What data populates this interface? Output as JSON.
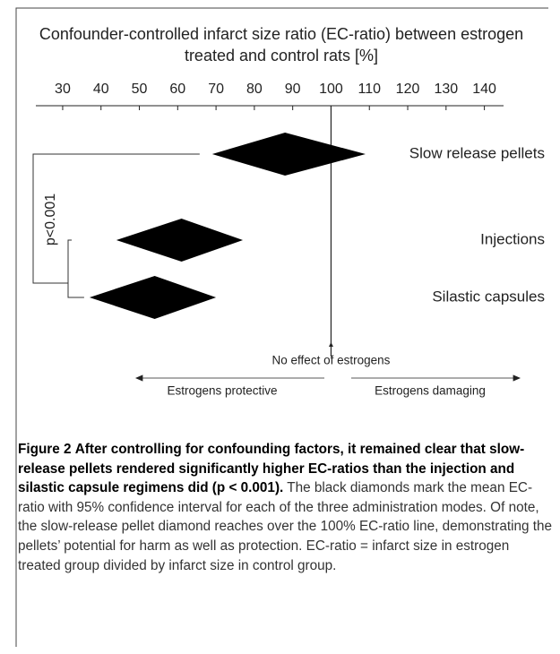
{
  "chart_data": {
    "type": "forest",
    "title": "Confounder-controlled infarct size ratio (EC-ratio) between estrogen treated and control rats [%]",
    "categories": [
      "Slow release pellets",
      "Injections",
      "Silastic capsules"
    ],
    "values": [
      88,
      61,
      54
    ],
    "low": [
      69,
      44,
      37
    ],
    "high": [
      109,
      77,
      70
    ],
    "color": "#000000",
    "xlim": [
      23,
      145
    ],
    "xticks": [
      30,
      40,
      50,
      60,
      70,
      80,
      90,
      100,
      110,
      120,
      130,
      140
    ],
    "reference_line": {
      "value": 100,
      "label": "No effect of estrogens"
    },
    "significance": "p<0.001",
    "direction_labels": [
      "Estrogens protective",
      "Estrogens damaging"
    ]
  },
  "caption": {
    "label": "Figure 2",
    "title": "After controlling for confounding factors, it remained clear that slow-release pellets rendered significantly higher EC-ratios than the injection and silastic capsule regimens did (p < 0.001).",
    "text": "The black diamonds mark the mean EC-ratio with 95% confidence interval for each of the three administration modes. Of note, the slow-release pellet diamond reaches over the 100% EC-ratio line, demonstrating the pellets’ potential for harm as well as protection. EC-ratio = infarct size in estrogen treated group divided by infarct size in control group."
  }
}
